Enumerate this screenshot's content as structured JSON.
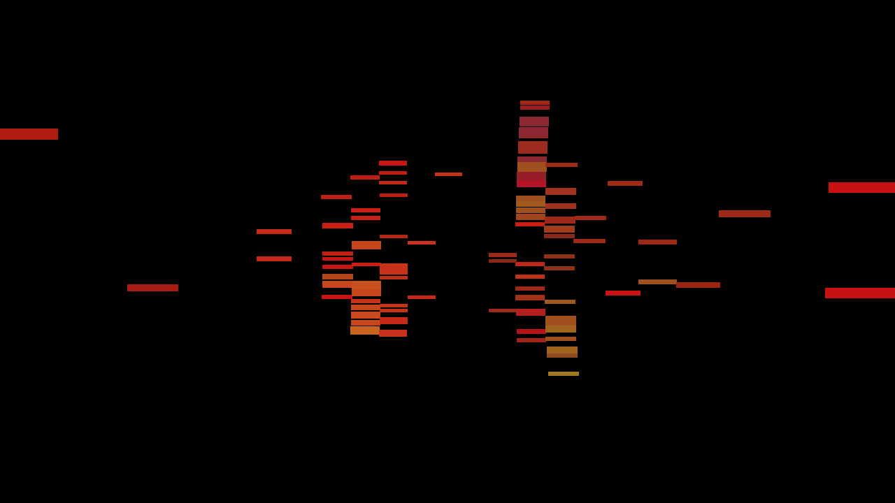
{
  "scene": {
    "background": "#000000",
    "description_visible_text": "",
    "palette": {
      "red": "#c81414",
      "dark_red": "#a01e12",
      "orange_red": "#c8321e",
      "orange": "#b4501e",
      "amber": "#a0641e",
      "crimson": "#8c1e28",
      "brown": "#8c2814"
    }
  }
}
